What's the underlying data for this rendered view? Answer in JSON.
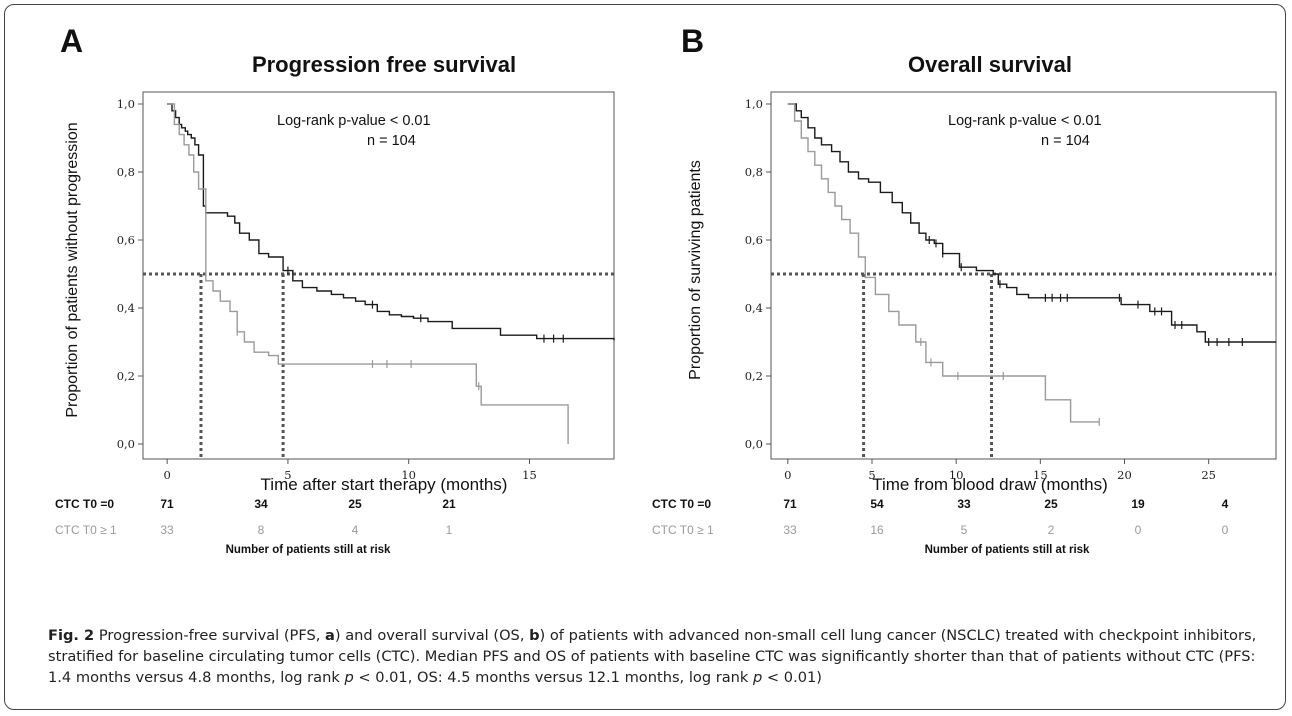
{
  "panels": [
    {
      "letter": "A",
      "title": "Progression free survival",
      "ylabel": "Proportion of patients without progression",
      "xlabel": "Time after start therapy (months)",
      "annotation": {
        "line1": "Log-rank p-value < 0.01",
        "line2": "n = 104"
      },
      "xticks": [
        "0",
        "5",
        "10",
        "15"
      ],
      "yticks": [
        "0,0",
        "0,2",
        "0,4",
        "0,6",
        "0,8",
        "1,0"
      ],
      "risk_table": {
        "rows": [
          {
            "label": "CTC T0 =0",
            "values": [
              "71",
              "34",
              "25",
              "21"
            ]
          },
          {
            "label": "CTC T0 ≥ 1",
            "values": [
              "33",
              "8",
              "4",
              "1"
            ]
          }
        ],
        "footer": "Number of patients still at risk"
      }
    },
    {
      "letter": "B",
      "title": "Overall survival",
      "ylabel": "Proportion of surviving patients",
      "xlabel": "Time from blood draw (months)",
      "annotation": {
        "line1": "Log-rank p-value < 0.01",
        "line2": "n = 104"
      },
      "xticks": [
        "0",
        "5",
        "10",
        "15",
        "20",
        "25"
      ],
      "yticks": [
        "0,0",
        "0,2",
        "0,4",
        "0,6",
        "0,8",
        "1,0"
      ],
      "risk_table": {
        "rows": [
          {
            "label": "CTC T0 =0",
            "values": [
              "71",
              "54",
              "33",
              "25",
              "19",
              "4"
            ]
          },
          {
            "label": "CTC T0 ≥ 1",
            "values": [
              "33",
              "16",
              "5",
              "2",
              "0",
              "0"
            ]
          }
        ],
        "footer": "Number of patients still at risk"
      }
    }
  ],
  "caption": {
    "label": "Fig. 2",
    "part1": " Progression-free survival (PFS, ",
    "a": "a",
    "part2": ") and overall survival (OS, ",
    "b": "b",
    "part3": ") of patients with advanced non-small cell lung cancer (NSCLC) treated with checkpoint inhibitors, stratified for baseline circulating tumor cells (CTC). Median PFS and OS of patients with baseline CTC was significantly shorter than that of patients without CTC (PFS: 1.4 months versus 4.8 months, log rank ",
    "p1": "p",
    "part4": " < 0.01, OS: 4.5 months versus 12.1 months, log rank ",
    "p2": "p",
    "part5": " < 0.01)"
  },
  "colors": {
    "ctc0": "#1a1a1a",
    "ctc1": "#9a9a9a",
    "reference": "#555555"
  },
  "chart_data": [
    {
      "type": "line",
      "title": "Progression free survival",
      "xlabel": "Time after start therapy (months)",
      "ylabel": "Proportion of patients without progression",
      "xlim": [
        -1,
        18.5
      ],
      "ylim": [
        0,
        1.0
      ],
      "xticks": [
        0,
        5,
        10,
        15
      ],
      "yticks": [
        0,
        0.2,
        0.4,
        0.6,
        0.8,
        1.0
      ],
      "reference_y": 0.5,
      "medians": [
        1.4,
        4.8
      ],
      "series": [
        {
          "name": "CTC T0 =0",
          "color": "#1a1a1a",
          "x": [
            0,
            0.2,
            0.35,
            0.5,
            0.6,
            0.75,
            0.85,
            1.0,
            1.15,
            1.3,
            1.5,
            1.6,
            2.5,
            2.8,
            3.0,
            3.4,
            3.8,
            4.2,
            4.8,
            5.2,
            5.6,
            6.2,
            6.8,
            7.3,
            7.8,
            8.2,
            8.7,
            9.2,
            9.7,
            10.2,
            10.8,
            11.8,
            13.8,
            15.3,
            18.5
          ],
          "y": [
            1.0,
            0.98,
            0.96,
            0.94,
            0.93,
            0.92,
            0.91,
            0.9,
            0.88,
            0.85,
            0.7,
            0.68,
            0.67,
            0.65,
            0.62,
            0.6,
            0.56,
            0.55,
            0.51,
            0.48,
            0.46,
            0.45,
            0.44,
            0.43,
            0.42,
            0.41,
            0.39,
            0.38,
            0.375,
            0.37,
            0.36,
            0.34,
            0.32,
            0.31,
            0.305
          ],
          "censored_x": [
            5.0,
            8.5,
            10.5,
            15.6,
            16.0,
            16.4
          ]
        },
        {
          "name": "CTC T0 ≥ 1",
          "color": "#9a9a9a",
          "x": [
            0,
            0.3,
            0.5,
            0.7,
            0.9,
            1.1,
            1.3,
            1.6,
            1.9,
            2.2,
            2.6,
            2.9,
            3.2,
            3.6,
            4.2,
            4.6,
            12.8,
            13.0,
            16.5,
            16.6
          ],
          "y": [
            1.0,
            0.94,
            0.91,
            0.88,
            0.85,
            0.8,
            0.75,
            0.48,
            0.45,
            0.42,
            0.39,
            0.33,
            0.3,
            0.27,
            0.26,
            0.235,
            0.17,
            0.115,
            0.115,
            0.0
          ],
          "censored_x": [
            2.9,
            8.5,
            9.1,
            10.1,
            12.9
          ]
        }
      ]
    },
    {
      "type": "line",
      "title": "Overall survival",
      "xlabel": "Time from blood draw (months)",
      "ylabel": "Proportion of surviving patients",
      "xlim": [
        -1,
        29
      ],
      "ylim": [
        0,
        1.0
      ],
      "xticks": [
        0,
        5,
        10,
        15,
        20,
        25
      ],
      "yticks": [
        0,
        0.2,
        0.4,
        0.6,
        0.8,
        1.0
      ],
      "reference_y": 0.5,
      "medians": [
        4.5,
        12.1
      ],
      "series": [
        {
          "name": "CTC T0 =0",
          "color": "#1a1a1a",
          "x": [
            0,
            0.5,
            0.8,
            1.2,
            1.6,
            2.0,
            2.6,
            3.1,
            3.6,
            4.2,
            4.8,
            5.5,
            6.2,
            6.8,
            7.3,
            7.8,
            8.2,
            8.7,
            9.2,
            10.2,
            11.2,
            12.2,
            12.5,
            13.0,
            13.6,
            14.3,
            19.8,
            21.5,
            22.8,
            24.3,
            24.8,
            29
          ],
          "y": [
            1.0,
            0.98,
            0.96,
            0.93,
            0.9,
            0.88,
            0.86,
            0.83,
            0.8,
            0.78,
            0.77,
            0.74,
            0.71,
            0.68,
            0.65,
            0.62,
            0.6,
            0.59,
            0.56,
            0.52,
            0.51,
            0.5,
            0.47,
            0.46,
            0.44,
            0.43,
            0.41,
            0.39,
            0.35,
            0.33,
            0.3,
            0.3
          ],
          "censored_x": [
            8.4,
            8.8,
            9.2,
            10.3,
            12.6,
            15.3,
            15.7,
            16.2,
            16.6,
            19.7,
            20.8,
            21.8,
            22.2,
            23.0,
            23.4,
            25.0,
            25.5,
            26.2,
            27.0
          ]
        },
        {
          "name": "CTC T0 ≥ 1",
          "color": "#9a9a9a",
          "x": [
            0,
            0.4,
            0.8,
            1.2,
            1.6,
            2.0,
            2.4,
            2.8,
            3.2,
            3.7,
            4.2,
            4.6,
            5.2,
            6.0,
            6.6,
            7.6,
            8.2,
            8.8,
            9.2,
            13.0,
            15.3,
            16.8,
            18.5
          ],
          "y": [
            1.0,
            0.95,
            0.9,
            0.86,
            0.82,
            0.78,
            0.74,
            0.7,
            0.66,
            0.62,
            0.55,
            0.49,
            0.44,
            0.39,
            0.35,
            0.3,
            0.24,
            0.24,
            0.2,
            0.2,
            0.13,
            0.065,
            0.065
          ],
          "censored_x": [
            7.9,
            8.5,
            10.1,
            12.8,
            18.5
          ]
        }
      ]
    }
  ]
}
